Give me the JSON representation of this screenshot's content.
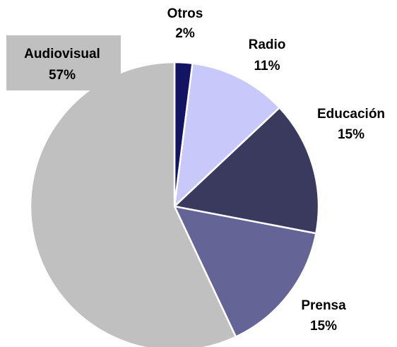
{
  "chart_data": {
    "type": "pie",
    "categories": [
      "Otros",
      "Radio",
      "Educación",
      "Prensa",
      "Audiovisual"
    ],
    "values": [
      2,
      11,
      15,
      15,
      57
    ],
    "value_labels": [
      "2%",
      "11%",
      "15%",
      "15%",
      "57%"
    ],
    "colors": [
      "#141464",
      "#c8c8fa",
      "#3a3a5e",
      "#646496",
      "#c0c0c0"
    ]
  }
}
